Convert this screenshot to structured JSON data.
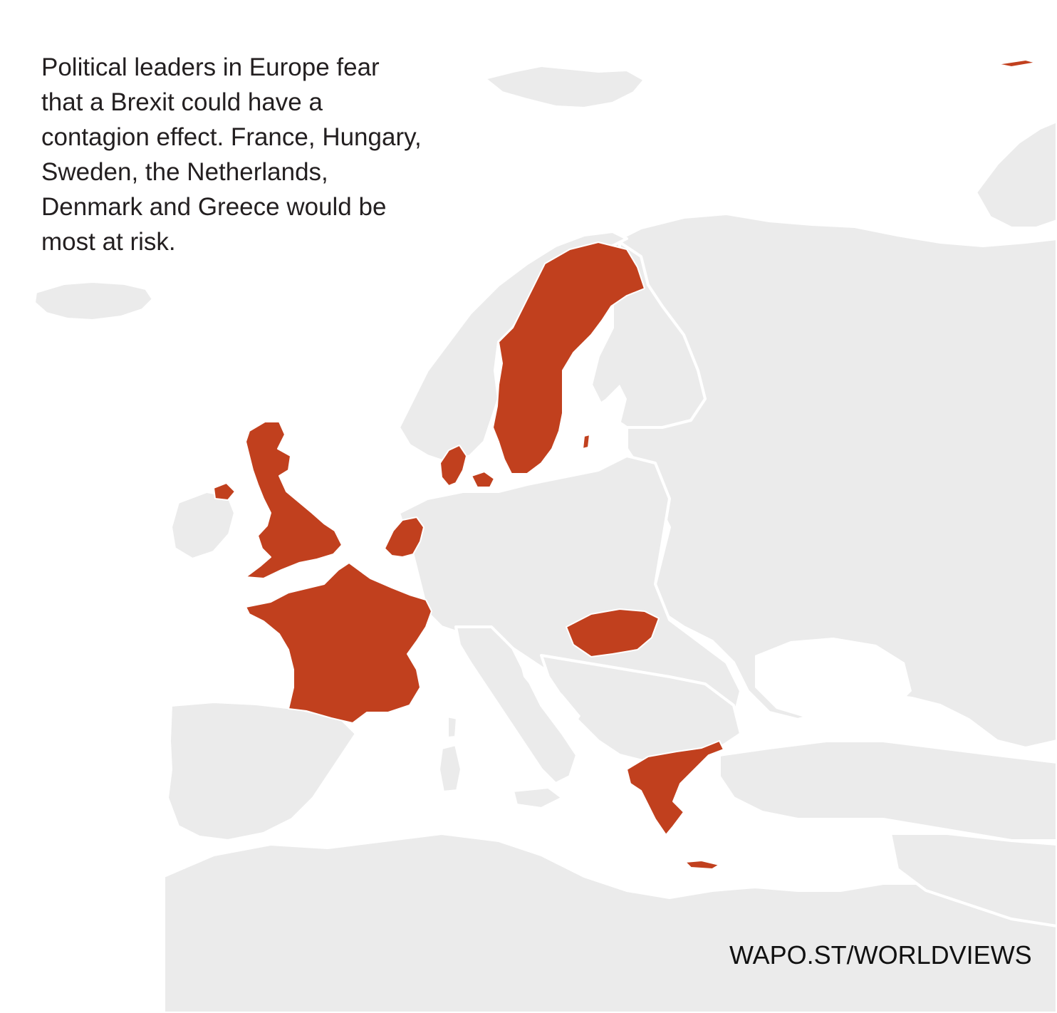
{
  "caption": {
    "lines": [
      "Political leaders in Europe fear",
      "that a Brexit could have a",
      "contagion effect. France, Hungary,",
      "Sweden, the Netherlands,",
      "Denmark and Greece would be",
      "most at risk."
    ]
  },
  "source": "WAPO.ST/WORLDVIEWS",
  "colors": {
    "highlight": "#c1401e",
    "land": "#ebebeb",
    "sea": "#ffffff",
    "text": "#231f20"
  },
  "highlighted_countries": [
    "United Kingdom",
    "France",
    "Netherlands",
    "Denmark",
    "Sweden",
    "Hungary",
    "Greece"
  ]
}
